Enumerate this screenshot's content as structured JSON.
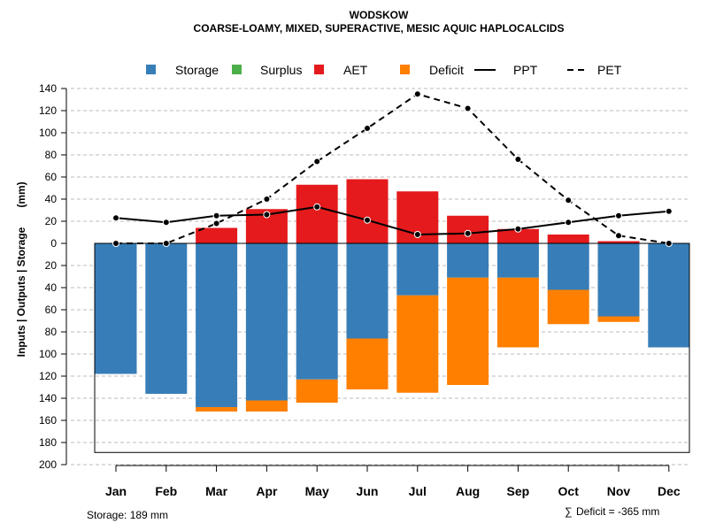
{
  "chart_data": {
    "type": "bar",
    "title": "WODSKOW",
    "subtitle": "COARSE-LOAMY, MIXED, SUPERACTIVE, MESIC AQUIC HAPLOCALCIDS",
    "ylabel_left": "Inputs | Outputs | Storage",
    "ylabel_unit": "(mm)",
    "categories": [
      "Jan",
      "Feb",
      "Mar",
      "Apr",
      "May",
      "Jun",
      "Jul",
      "Aug",
      "Sep",
      "Oct",
      "Nov",
      "Dec"
    ],
    "ylim": [
      -200,
      140
    ],
    "y_ticks": [
      140,
      120,
      100,
      80,
      60,
      40,
      20,
      0,
      -20,
      -40,
      -60,
      -80,
      -100,
      -120,
      -140,
      -160,
      -180,
      -200
    ],
    "y_tick_labels": [
      "140",
      "120",
      "100",
      "80",
      "60",
      "40",
      "20",
      "0",
      "20",
      "40",
      "60",
      "80",
      "100",
      "120",
      "140",
      "160",
      "180",
      "200"
    ],
    "grid": true,
    "legend_position": "top",
    "legend": [
      {
        "label": "Storage",
        "kind": "box",
        "color": "#377EB8"
      },
      {
        "label": "Surplus",
        "kind": "box",
        "color": "#4DAF4A"
      },
      {
        "label": "AET",
        "kind": "box",
        "color": "#E41A1C"
      },
      {
        "label": "Deficit",
        "kind": "box",
        "color": "#FF7F00"
      },
      {
        "label": "PPT",
        "kind": "solid-line",
        "color": "#000000"
      },
      {
        "label": "PET",
        "kind": "dashed-line",
        "color": "#000000"
      }
    ],
    "series": [
      {
        "name": "AET",
        "color": "#E41A1C",
        "values": [
          0,
          0,
          14,
          31,
          53,
          58,
          47,
          25,
          13,
          8,
          2,
          0
        ]
      },
      {
        "name": "Storage",
        "color": "#377EB8",
        "values": [
          118,
          136,
          148,
          142,
          123,
          86,
          47,
          31,
          31,
          42,
          66,
          94
        ]
      },
      {
        "name": "Deficit",
        "color": "#FF7F00",
        "values": [
          0,
          0,
          4,
          10,
          21,
          46,
          88,
          97,
          63,
          31,
          5,
          0
        ]
      },
      {
        "name": "PPT",
        "color": "#000000",
        "style": "solid",
        "values": [
          23,
          19,
          25,
          26,
          33,
          21,
          8,
          9,
          13,
          19,
          25,
          29
        ]
      },
      {
        "name": "PET",
        "color": "#000000",
        "style": "dashed",
        "values": [
          0,
          0,
          18,
          40,
          74,
          104,
          135,
          122,
          76,
          39,
          7,
          0
        ]
      }
    ],
    "storage_capacity": 189,
    "footer_left": "Storage: 189 mm",
    "footer_right_symbol": "∑",
    "footer_right": "Deficit = -365 mm"
  }
}
